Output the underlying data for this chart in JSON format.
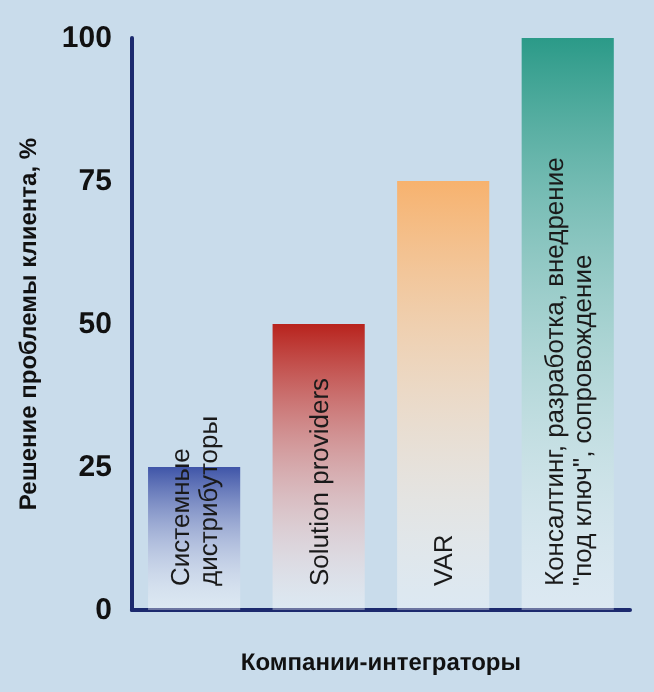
{
  "chart_data": {
    "type": "bar",
    "xlabel": "Компании-интеграторы",
    "ylabel": "Решение проблемы клиента, %",
    "categories": [
      "Системные\nдистрибуторы",
      "Solution providers",
      "VAR",
      "Консалтинг, разработка, внедрение\n\"под ключ\", сопровождение"
    ],
    "values": [
      25,
      50,
      75,
      100
    ],
    "colors": [
      "#3f55a8",
      "#b8231d",
      "#f7b26e",
      "#2b9a88"
    ],
    "ylim": [
      0,
      100
    ],
    "yticks": [
      0,
      25,
      50,
      75,
      100
    ],
    "grid": false
  }
}
